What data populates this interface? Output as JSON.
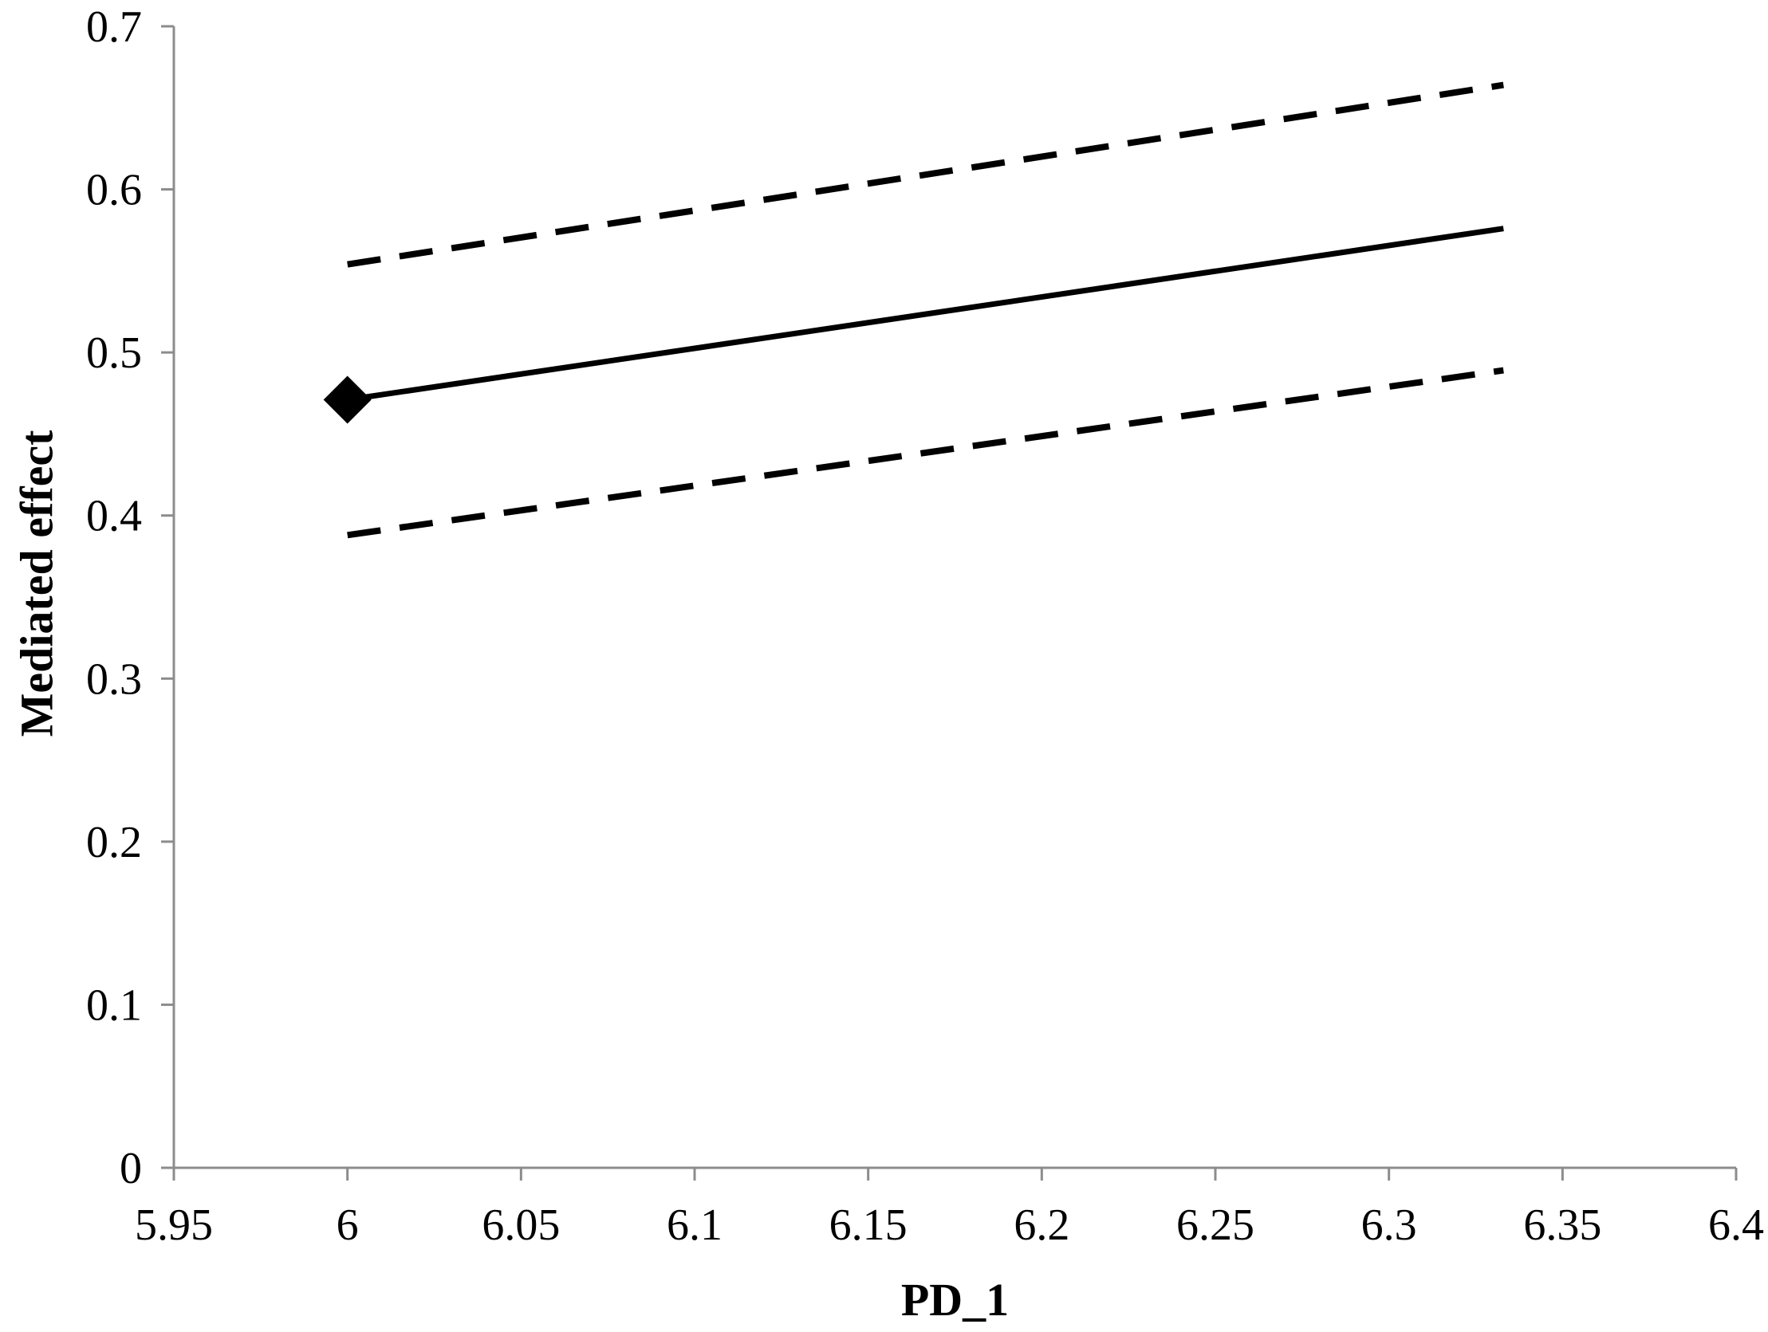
{
  "chart_data": {
    "type": "line",
    "title": "",
    "xlabel": "PD_1",
    "ylabel": "Mediated effect",
    "xlim": [
      5.95,
      6.4
    ],
    "ylim": [
      0,
      0.7
    ],
    "x_ticks": [
      "5.95",
      "6",
      "6.05",
      "6.1",
      "6.15",
      "6.2",
      "6.25",
      "6.3",
      "6.35",
      "6.4"
    ],
    "y_ticks": [
      "0",
      "0.1",
      "0.2",
      "0.3",
      "0.4",
      "0.5",
      "0.6",
      "0.7"
    ],
    "grid": false,
    "legend": "none",
    "series": [
      {
        "style": "solid",
        "color": "#000000",
        "x": [
          6.0,
          6.333
        ],
        "y": [
          0.471,
          0.576
        ]
      },
      {
        "style": "dashed",
        "color": "#000000",
        "x": [
          6.0,
          6.333
        ],
        "y": [
          0.554,
          0.664
        ]
      },
      {
        "style": "dashed",
        "color": "#000000",
        "x": [
          6.0,
          6.333
        ],
        "y": [
          0.388,
          0.489
        ]
      }
    ],
    "markers": [
      {
        "shape": "diamond",
        "color": "#000000",
        "x": 6.0,
        "y": 0.471
      }
    ],
    "colors": {
      "axis": "#8c8c8c",
      "line": "#000000"
    }
  }
}
